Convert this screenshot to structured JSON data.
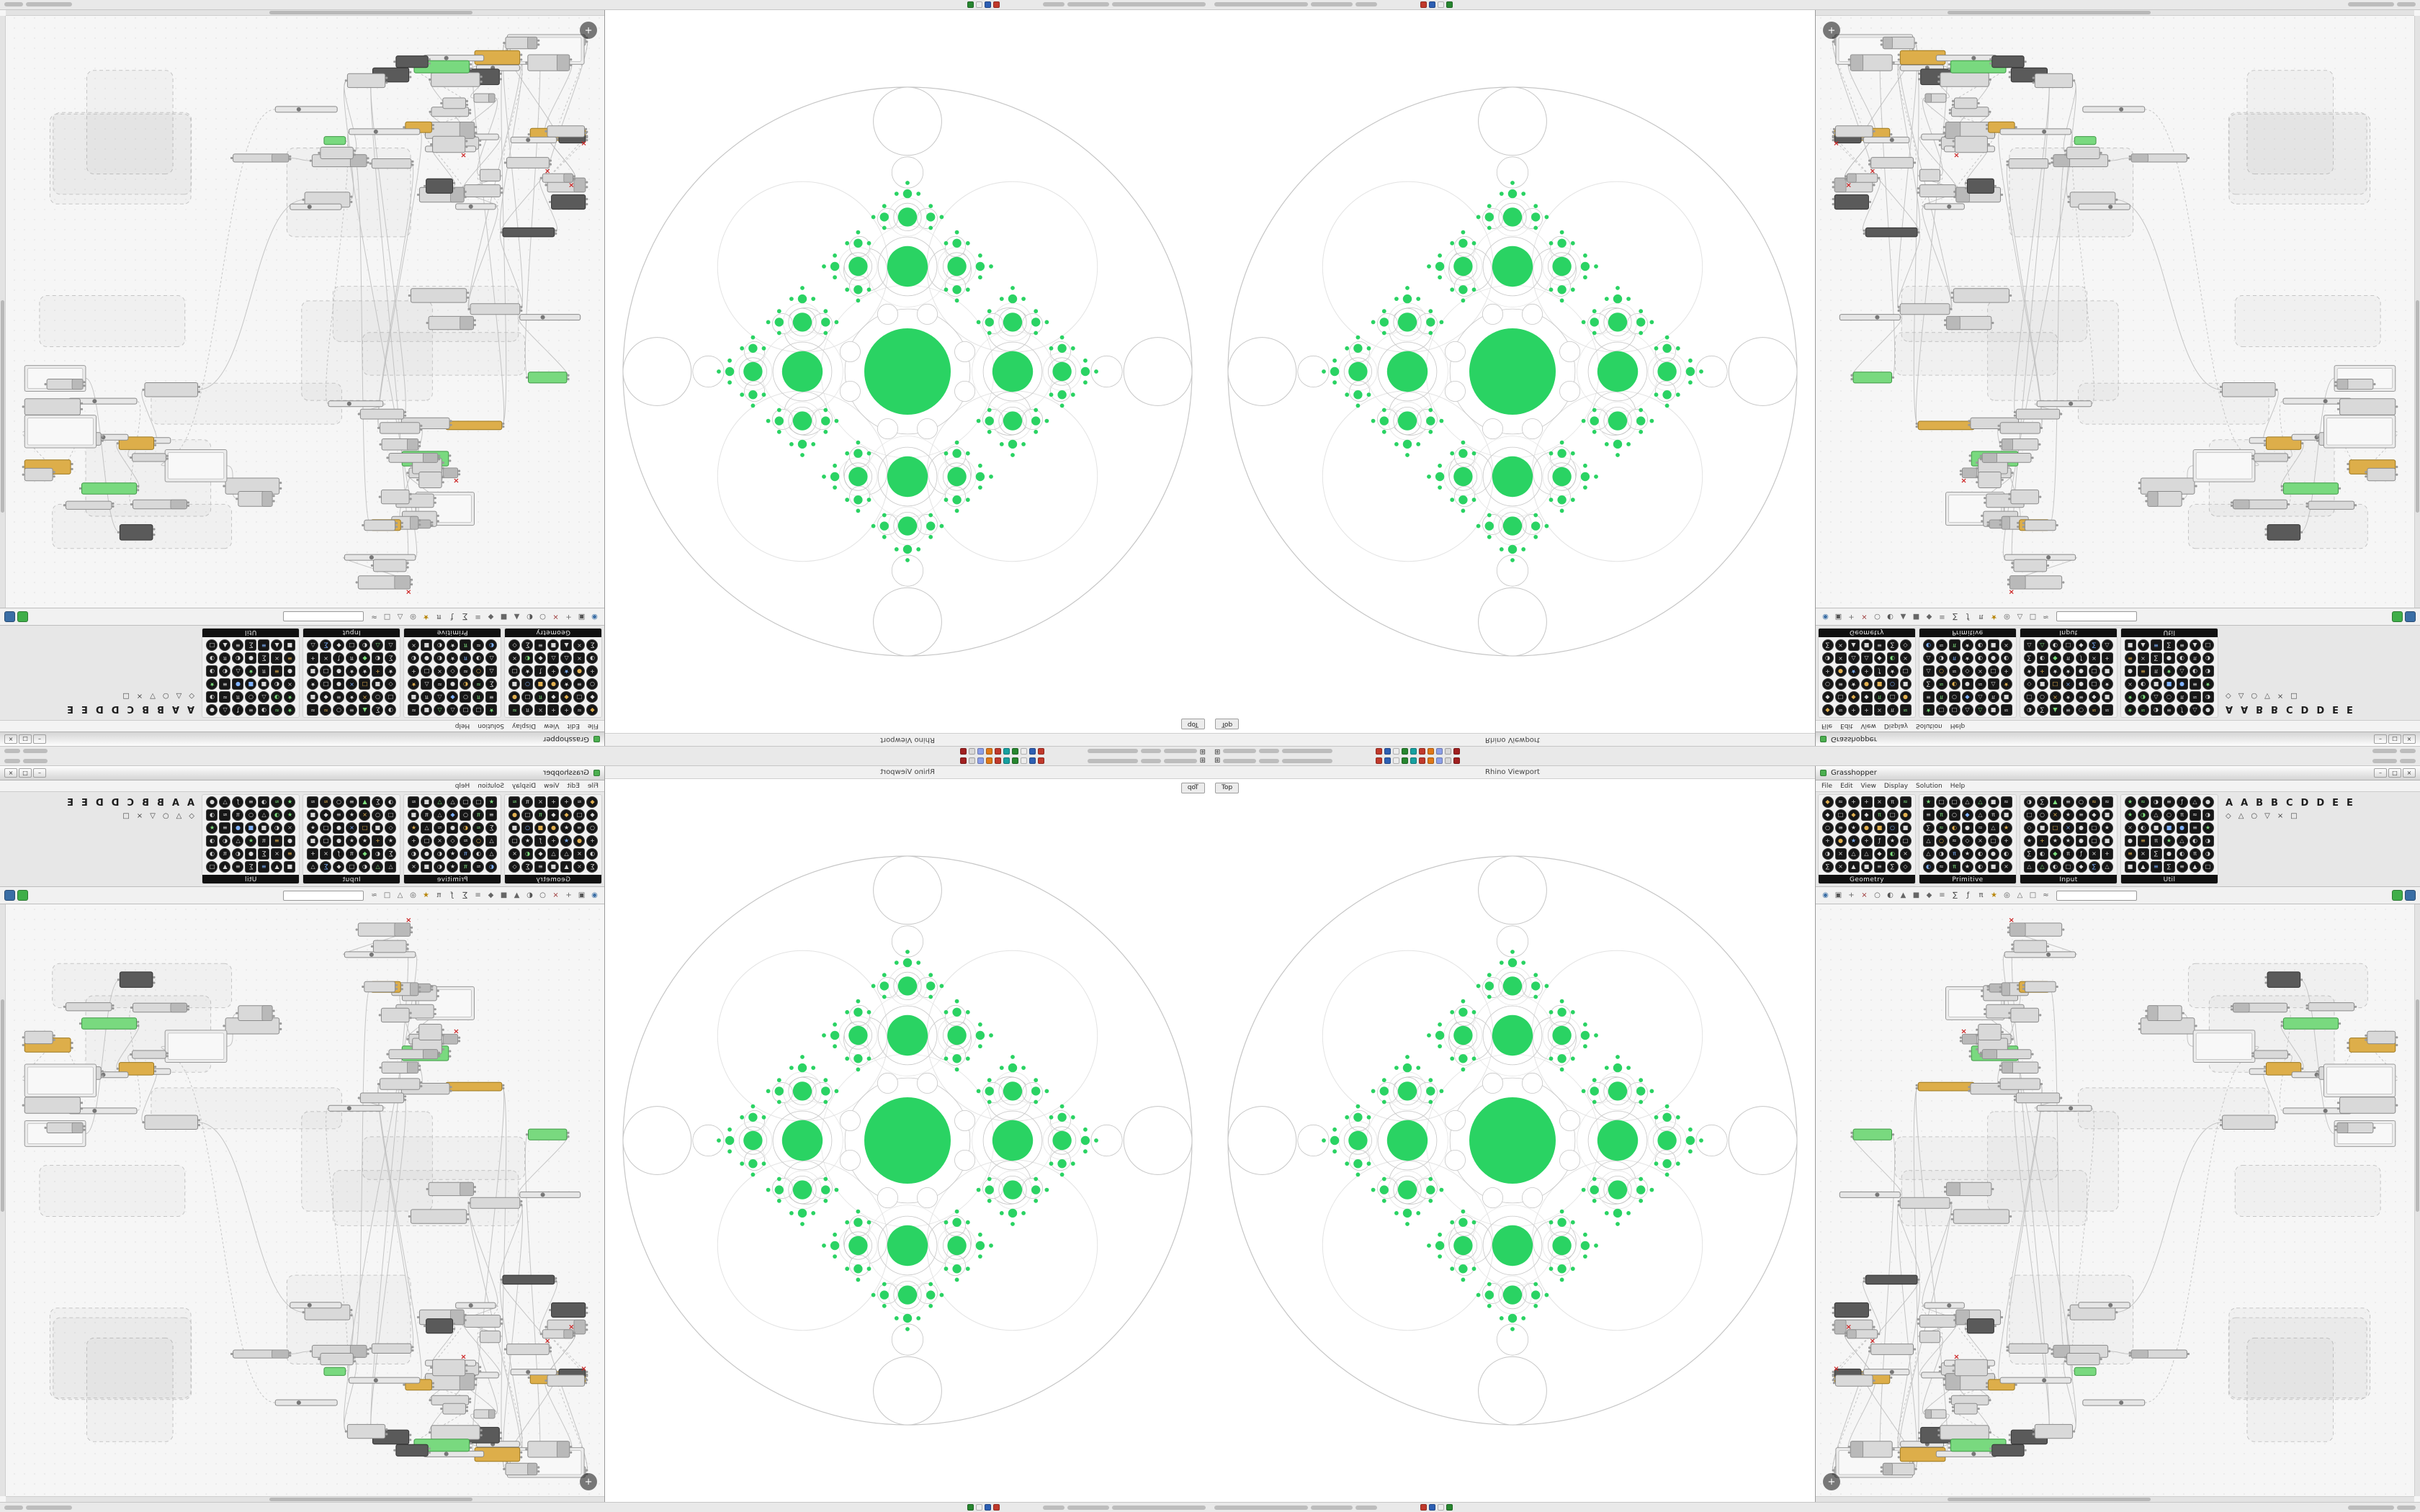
{
  "os": {
    "start_glyph": "⊞",
    "tray_colors": [
      "#c0392b",
      "#2d5fb3",
      "#ececec",
      "#27862f",
      "#16a0a0",
      "#c0392b",
      "#e07818",
      "#8c9fe8",
      "#d8d8d8",
      "#a02020"
    ],
    "status_colors": [
      "#c0392b",
      "#2d5fb3",
      "#ececec",
      "#27862f"
    ],
    "top_blobs_left": [
      46,
      28,
      70
    ],
    "top_blobs_right": [
      34,
      22
    ],
    "bottom_blobs_left": [
      130,
      58,
      30
    ],
    "bottom_blobs_right": [
      64,
      26
    ]
  },
  "viewport": {
    "title": "Rhino Viewport",
    "tab_label": "Top"
  },
  "gh": {
    "window_title": "Grasshopper",
    "window_buttons": [
      "–",
      "□",
      "×"
    ],
    "menu_items": [
      "File",
      "Edit",
      "View",
      "Display",
      "Solution",
      "Help"
    ],
    "tab_letters": [
      "A",
      "A",
      "B",
      "B",
      "C",
      "D",
      "D",
      "E",
      "E"
    ],
    "tab_glyphs": [
      "◇",
      "△",
      "○",
      "▽",
      "×",
      "□"
    ],
    "palette_groups": [
      "Geometry",
      "Primitive",
      "Input",
      "Util"
    ],
    "palette_glyphs": "●▲■◆◇○△□×+≡≈∑ƒπ★◐◑",
    "compass_glyph": "+",
    "toolbar_icons": [
      {
        "g": "◉",
        "c": "#3a6ea5"
      },
      {
        "g": "▣",
        "c": "#555555"
      },
      {
        "g": "+",
        "c": "#666666"
      },
      {
        "g": "×",
        "c": "#993333"
      },
      {
        "g": "○",
        "c": "#555555"
      },
      {
        "g": "◐",
        "c": "#555555"
      },
      {
        "g": "▲",
        "c": "#666666"
      },
      {
        "g": "■",
        "c": "#666666"
      },
      {
        "g": "◆",
        "c": "#666666"
      },
      {
        "g": "≡",
        "c": "#666666"
      },
      {
        "g": "∑",
        "c": "#444444"
      },
      {
        "g": "ƒ",
        "c": "#444444"
      },
      {
        "g": "π",
        "c": "#444444"
      },
      {
        "g": "★",
        "c": "#b8860b"
      },
      {
        "g": "◎",
        "c": "#555555"
      },
      {
        "g": "△",
        "c": "#666666"
      },
      {
        "g": "□",
        "c": "#666666"
      },
      {
        "g": "≈",
        "c": "#666666"
      }
    ],
    "toolbar_right_squares": [
      "#3fae49",
      "#3a6ea5"
    ]
  },
  "fractal": {
    "green": "#2ad363",
    "ring": "#c6c6c6",
    "faint": "#e3e3e3"
  },
  "graph": {
    "seed": 1337,
    "node_fill": "#d9d9d9",
    "node_stroke": "#8a8a8a",
    "header_fill": "#b9b9b9",
    "wire": "#bcbcbc",
    "group_stroke": "#c5c5c5",
    "accent_green": "#79d97f",
    "accent_green_stroke": "#3f9945",
    "accent_orange": "#ddae4a",
    "accent_orange_stroke": "#9c7820",
    "accent_dark": "#5a5a5a",
    "accent_red": "#cc2222",
    "counts": {
      "groups": 11,
      "clusters": 14,
      "nodes": 92,
      "wires": 66,
      "reds": 6
    }
  }
}
